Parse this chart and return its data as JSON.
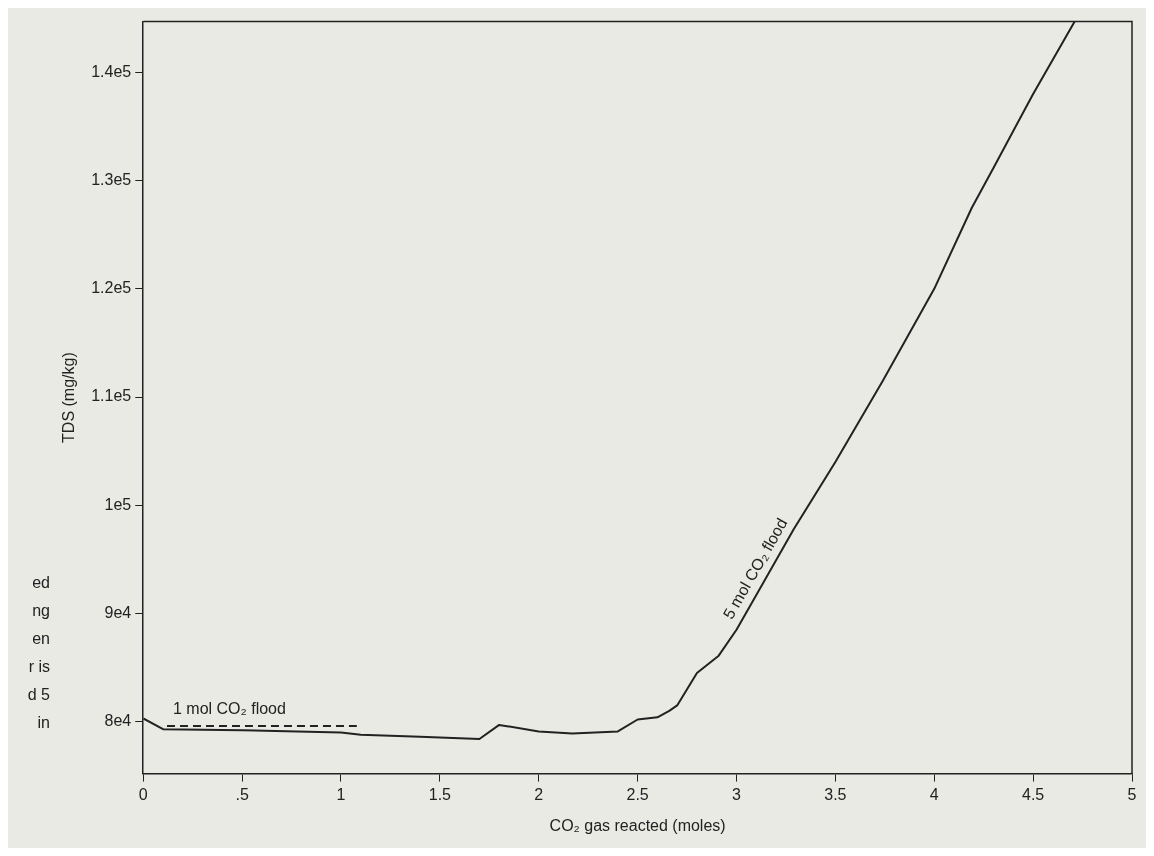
{
  "chart_data": {
    "type": "line",
    "xlabel": "CO₂ gas reacted (moles)",
    "ylabel": "TDS (mg/kg)",
    "xlim": [
      0,
      5
    ],
    "ylim": [
      75200,
      144700
    ],
    "xticks": [
      0,
      {
        "value": 0.5,
        "label": ".5"
      },
      1,
      1.5,
      2,
      2.5,
      3,
      3.5,
      4,
      4.5,
      5
    ],
    "yticks": [
      {
        "value": 80000,
        "label": "8e4"
      },
      {
        "value": 90000,
        "label": "9e4"
      },
      {
        "value": 100000,
        "label": "1e5"
      },
      {
        "value": 110000,
        "label": "1.1e5"
      },
      {
        "value": 120000,
        "label": "1.2e5"
      },
      {
        "value": 130000,
        "label": "1.3e5"
      },
      {
        "value": 140000,
        "label": "1.4e5"
      }
    ],
    "grid": false,
    "legend": false,
    "marker": "none",
    "series": [
      {
        "name": "1 mol CO₂ flood",
        "color": "#222222",
        "line_style": "dashed",
        "x": [
          0.12,
          1.08
        ],
        "values": [
          79600,
          79600
        ]
      },
      {
        "name": "5 mol CO₂ flood",
        "color": "#222222",
        "line_style": "solid",
        "x": [
          0,
          0.1,
          0.5,
          1.0,
          1.1,
          1.4,
          1.7,
          1.8,
          2.0,
          2.17,
          2.4,
          2.5,
          2.6,
          2.66,
          2.7,
          2.8,
          2.91,
          3.0,
          3.29,
          3.5,
          3.74,
          4.0,
          4.19,
          4.3,
          4.5,
          4.71
        ],
        "values": [
          80300,
          79300,
          79200,
          79000,
          78800,
          78600,
          78400,
          79700,
          79100,
          78900,
          79100,
          80200,
          80400,
          81000,
          81500,
          84500,
          86100,
          88500,
          97800,
          104000,
          111500,
          120000,
          127500,
          131200,
          138000,
          144700
        ]
      }
    ],
    "annotations": [
      "ed",
      "ng",
      "en",
      "r is",
      "d 5",
      "in"
    ]
  }
}
